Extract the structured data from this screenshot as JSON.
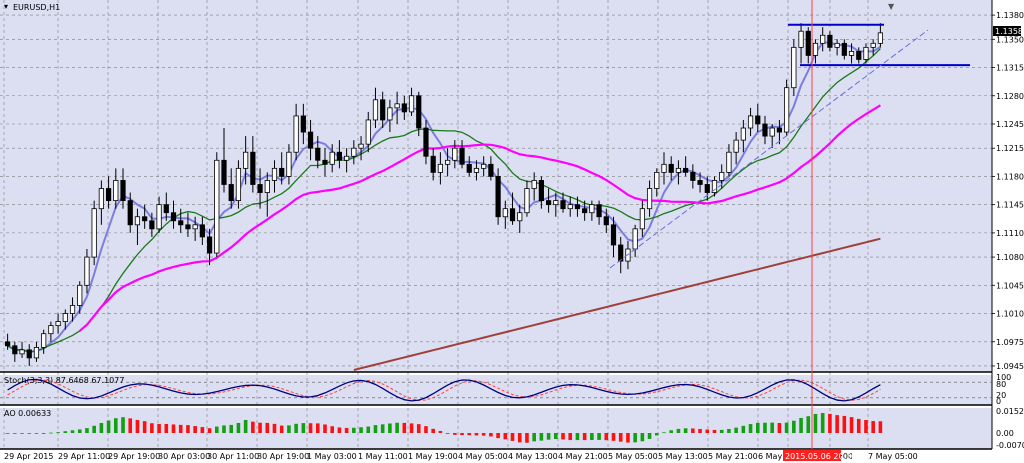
{
  "window": {
    "symbol_title": "EURUSD,H1"
  },
  "colors": {
    "background": "#dcdff2",
    "grid": "#7f7f7f",
    "candle_bull": "#ffffff",
    "candle_bear": "#000000",
    "ma_fast": "#7b7ee0",
    "ma_green": "#1a7a1a",
    "ma_magenta": "#ff00ff",
    "ma_brown": "#a0403a",
    "level_lines": "#0000c8",
    "trend_lines": "#6a6ed8",
    "stoch_main": "#000080",
    "stoch_signal": "#ff4040",
    "ao_up": "#12a012",
    "ao_down": "#ff1010",
    "vline": "#ff4040",
    "price_tag_bg": "#000000"
  },
  "price_axis": {
    "labels": [
      "1.1380",
      "1.1350",
      "1.1315",
      "1.1280",
      "1.1245",
      "1.1215",
      "1.1180",
      "1.1145",
      "1.1110",
      "1.1080",
      "1.1045",
      "1.1010",
      "1.0975",
      "1.0945"
    ],
    "current_price": "1.1358"
  },
  "time_axis": {
    "labels": [
      "29 Apr 2015",
      "29 Apr 11:00",
      "29 Apr 19:00",
      "30 Apr 03:00",
      "30 Apr 11:00",
      "30 Apr 19:00",
      "1 May 03:00",
      "1 May 11:00",
      "1 May 19:00",
      "4 May 05:00",
      "4 May 13:00",
      "4 May 21:00",
      "5 May 05:00",
      "5 May 13:00",
      "5 May 21:00",
      "6 May 05:00",
      "6 M",
      "21:00",
      "7 May 05:00"
    ],
    "highlight_label": "2015.05.06 20:30"
  },
  "stochastic": {
    "label": "Stoch(3,3,3) 87.6468 67.1077",
    "scale": [
      "100",
      "80",
      "20",
      "0"
    ]
  },
  "ao": {
    "label": "AO 0.00633",
    "scale": [
      "0.01524",
      "0.00",
      "-0.00709"
    ]
  },
  "chart_data": {
    "type": "candlestick",
    "symbol": "EURUSD",
    "timeframe": "H1",
    "ylim": [
      1.094,
      1.1395
    ],
    "candles": [
      [
        1.0975,
        1.0985,
        1.0965,
        1.097
      ],
      [
        1.097,
        1.0975,
        1.095,
        1.096
      ],
      [
        1.096,
        1.0975,
        1.0955,
        1.0965
      ],
      [
        1.0965,
        1.0972,
        1.0945,
        1.0955
      ],
      [
        1.0955,
        1.0975,
        1.095,
        1.0968
      ],
      [
        1.0968,
        1.099,
        1.096,
        1.0985
      ],
      [
        1.0985,
        1.1,
        1.0975,
        1.0995
      ],
      [
        1.0995,
        1.101,
        1.0985,
        1.1
      ],
      [
        1.1,
        1.1015,
        1.099,
        1.101
      ],
      [
        1.101,
        1.103,
        1.1,
        1.102
      ],
      [
        1.102,
        1.105,
        1.101,
        1.1045
      ],
      [
        1.1045,
        1.109,
        1.1035,
        1.108
      ],
      [
        1.108,
        1.115,
        1.107,
        1.114
      ],
      [
        1.114,
        1.1175,
        1.112,
        1.1165
      ],
      [
        1.1165,
        1.118,
        1.114,
        1.115
      ],
      [
        1.115,
        1.119,
        1.114,
        1.1175
      ],
      [
        1.1175,
        1.119,
        1.114,
        1.115
      ],
      [
        1.115,
        1.116,
        1.111,
        1.112
      ],
      [
        1.112,
        1.114,
        1.1095,
        1.113
      ],
      [
        1.113,
        1.1145,
        1.1115,
        1.1125
      ],
      [
        1.1125,
        1.1135,
        1.1105,
        1.1115
      ],
      [
        1.1115,
        1.1155,
        1.111,
        1.1145
      ],
      [
        1.1145,
        1.116,
        1.1125,
        1.1135
      ],
      [
        1.1135,
        1.115,
        1.1115,
        1.1125
      ],
      [
        1.1125,
        1.114,
        1.111,
        1.112
      ],
      [
        1.112,
        1.1135,
        1.1105,
        1.1115
      ],
      [
        1.1115,
        1.113,
        1.11,
        1.112
      ],
      [
        1.112,
        1.113,
        1.1095,
        1.1105
      ],
      [
        1.1105,
        1.1115,
        1.107,
        1.1085
      ],
      [
        1.1085,
        1.121,
        1.108,
        1.12
      ],
      [
        1.12,
        1.124,
        1.116,
        1.117
      ],
      [
        1.117,
        1.119,
        1.114,
        1.115
      ],
      [
        1.115,
        1.12,
        1.114,
        1.119
      ],
      [
        1.119,
        1.123,
        1.117,
        1.121
      ],
      [
        1.121,
        1.123,
        1.116,
        1.117
      ],
      [
        1.117,
        1.119,
        1.114,
        1.116
      ],
      [
        1.116,
        1.1185,
        1.113,
        1.1175
      ],
      [
        1.1175,
        1.12,
        1.116,
        1.119
      ],
      [
        1.119,
        1.121,
        1.117,
        1.118
      ],
      [
        1.118,
        1.122,
        1.117,
        1.121
      ],
      [
        1.121,
        1.127,
        1.12,
        1.1255
      ],
      [
        1.1255,
        1.127,
        1.122,
        1.1235
      ],
      [
        1.1235,
        1.125,
        1.12,
        1.1215
      ],
      [
        1.1215,
        1.123,
        1.119,
        1.12
      ],
      [
        1.12,
        1.1215,
        1.118,
        1.1195
      ],
      [
        1.1195,
        1.122,
        1.1185,
        1.121
      ],
      [
        1.121,
        1.1225,
        1.119,
        1.12
      ],
      [
        1.12,
        1.1215,
        1.1185,
        1.1205
      ],
      [
        1.1205,
        1.1225,
        1.1195,
        1.1215
      ],
      [
        1.1215,
        1.123,
        1.12,
        1.122
      ],
      [
        1.122,
        1.126,
        1.121,
        1.125
      ],
      [
        1.125,
        1.129,
        1.124,
        1.1275
      ],
      [
        1.1275,
        1.1285,
        1.124,
        1.125
      ],
      [
        1.125,
        1.1275,
        1.1235,
        1.1265
      ],
      [
        1.1265,
        1.1285,
        1.1245,
        1.127
      ],
      [
        1.127,
        1.128,
        1.125,
        1.126
      ],
      [
        1.126,
        1.129,
        1.1255,
        1.128
      ],
      [
        1.128,
        1.1285,
        1.123,
        1.124
      ],
      [
        1.124,
        1.125,
        1.1195,
        1.1205
      ],
      [
        1.1205,
        1.1215,
        1.1175,
        1.1185
      ],
      [
        1.1185,
        1.121,
        1.117,
        1.1195
      ],
      [
        1.1195,
        1.1215,
        1.118,
        1.12
      ],
      [
        1.12,
        1.1225,
        1.119,
        1.1215
      ],
      [
        1.1215,
        1.1225,
        1.119,
        1.1195
      ],
      [
        1.1195,
        1.1205,
        1.118,
        1.1185
      ],
      [
        1.1185,
        1.12,
        1.1175,
        1.119
      ],
      [
        1.119,
        1.1205,
        1.118,
        1.1195
      ],
      [
        1.1195,
        1.1205,
        1.1175,
        1.118
      ],
      [
        1.118,
        1.119,
        1.112,
        1.113
      ],
      [
        1.113,
        1.115,
        1.1115,
        1.114
      ],
      [
        1.114,
        1.116,
        1.112,
        1.1125
      ],
      [
        1.1125,
        1.1145,
        1.111,
        1.1135
      ],
      [
        1.1135,
        1.1175,
        1.113,
        1.1165
      ],
      [
        1.1165,
        1.1185,
        1.115,
        1.1175
      ],
      [
        1.1175,
        1.118,
        1.114,
        1.115
      ],
      [
        1.115,
        1.1165,
        1.1135,
        1.1145
      ],
      [
        1.1145,
        1.116,
        1.113,
        1.115
      ],
      [
        1.115,
        1.116,
        1.1135,
        1.114
      ],
      [
        1.114,
        1.1155,
        1.113,
        1.1145
      ],
      [
        1.1145,
        1.1155,
        1.113,
        1.114
      ],
      [
        1.114,
        1.115,
        1.1125,
        1.1135
      ],
      [
        1.1135,
        1.115,
        1.1125,
        1.1145
      ],
      [
        1.1145,
        1.115,
        1.112,
        1.113
      ],
      [
        1.113,
        1.114,
        1.111,
        1.112
      ],
      [
        1.112,
        1.113,
        1.108,
        1.1095
      ],
      [
        1.1095,
        1.1105,
        1.106,
        1.1075
      ],
      [
        1.1075,
        1.11,
        1.1065,
        1.109
      ],
      [
        1.109,
        1.112,
        1.108,
        1.1115
      ],
      [
        1.1115,
        1.115,
        1.1105,
        1.114
      ],
      [
        1.114,
        1.1175,
        1.113,
        1.1165
      ],
      [
        1.1165,
        1.119,
        1.1155,
        1.1185
      ],
      [
        1.1185,
        1.121,
        1.117,
        1.1195
      ],
      [
        1.1195,
        1.1205,
        1.1175,
        1.1185
      ],
      [
        1.1185,
        1.12,
        1.117,
        1.119
      ],
      [
        1.119,
        1.1205,
        1.118,
        1.1185
      ],
      [
        1.1185,
        1.1195,
        1.1165,
        1.1175
      ],
      [
        1.1175,
        1.1185,
        1.116,
        1.117
      ],
      [
        1.117,
        1.118,
        1.115,
        1.116
      ],
      [
        1.116,
        1.118,
        1.1155,
        1.1175
      ],
      [
        1.1175,
        1.1195,
        1.1165,
        1.1185
      ],
      [
        1.1185,
        1.122,
        1.118,
        1.121
      ],
      [
        1.121,
        1.1235,
        1.1195,
        1.1225
      ],
      [
        1.1225,
        1.125,
        1.121,
        1.124
      ],
      [
        1.124,
        1.1265,
        1.123,
        1.1255
      ],
      [
        1.1255,
        1.127,
        1.1235,
        1.1245
      ],
      [
        1.1245,
        1.1255,
        1.122,
        1.123
      ],
      [
        1.123,
        1.1245,
        1.1215,
        1.124
      ],
      [
        1.124,
        1.125,
        1.122,
        1.1235
      ],
      [
        1.1235,
        1.13,
        1.123,
        1.129
      ],
      [
        1.129,
        1.135,
        1.128,
        1.134
      ],
      [
        1.134,
        1.137,
        1.132,
        1.136
      ],
      [
        1.136,
        1.1365,
        1.132,
        1.133
      ],
      [
        1.133,
        1.135,
        1.132,
        1.1345
      ],
      [
        1.1345,
        1.1365,
        1.1335,
        1.1355
      ],
      [
        1.1355,
        1.136,
        1.1335,
        1.134
      ],
      [
        1.134,
        1.135,
        1.133,
        1.1345
      ],
      [
        1.1345,
        1.135,
        1.1325,
        1.133
      ],
      [
        1.133,
        1.1345,
        1.132,
        1.1335
      ],
      [
        1.1335,
        1.134,
        1.132,
        1.1325
      ],
      [
        1.1325,
        1.1345,
        1.132,
        1.134
      ],
      [
        1.134,
        1.135,
        1.133,
        1.1345
      ],
      [
        1.1345,
        1.137,
        1.134,
        1.1358
      ]
    ],
    "horizontal_levels": [
      1.1368,
      1.1318
    ],
    "vertical_marker_label": "2015.05.06 20:30"
  }
}
